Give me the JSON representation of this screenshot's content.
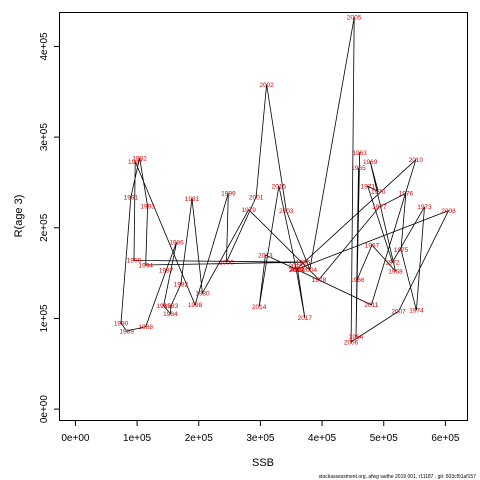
{
  "chart_data": {
    "type": "line",
    "title": "",
    "xlabel": "SSB",
    "ylabel": "R(age 3)",
    "xlim": [
      -25000,
      635000
    ],
    "ylim": [
      -12000,
      438000
    ],
    "x_ticks": [
      0,
      100000,
      200000,
      300000,
      400000,
      500000,
      600000
    ],
    "x_tick_labels": [
      "0e+00",
      "1e+05",
      "2e+05",
      "3e+05",
      "4e+05",
      "5e+05",
      "6e+05"
    ],
    "y_ticks": [
      0,
      100000,
      200000,
      300000,
      400000
    ],
    "y_tick_labels": [
      "0e+00",
      "1e+05",
      "2e+05",
      "3e+05",
      "4e+05"
    ],
    "grid": false,
    "line_color": "#000000",
    "label_color": "#e00000",
    "points": [
      {
        "year": "1963",
        "ssb": 461000,
        "r": 283000
      },
      {
        "year": "1964",
        "ssb": 455000,
        "r": 80000
      },
      {
        "year": "1965",
        "ssb": 459000,
        "r": 266000
      },
      {
        "year": "1966",
        "ssb": 457000,
        "r": 143000
      },
      {
        "year": "1967",
        "ssb": 481000,
        "r": 181000
      },
      {
        "year": "1968",
        "ssb": 519000,
        "r": 152000
      },
      {
        "year": "1969",
        "ssb": 478000,
        "r": 273000
      },
      {
        "year": "1970",
        "ssb": 491000,
        "r": 240000
      },
      {
        "year": "1971",
        "ssb": 474000,
        "r": 246000
      },
      {
        "year": "1972",
        "ssb": 514000,
        "r": 162000
      },
      {
        "year": "1973",
        "ssb": 566000,
        "r": 223000
      },
      {
        "year": "1974",
        "ssb": 553000,
        "r": 109000
      },
      {
        "year": "1975",
        "ssb": 528000,
        "r": 176000
      },
      {
        "year": "1976",
        "ssb": 536000,
        "r": 238000
      },
      {
        "year": "1977",
        "ssb": 493000,
        "r": 223000
      },
      {
        "year": "1978",
        "ssb": 395000,
        "r": 143000
      },
      {
        "year": "1979",
        "ssb": 281000,
        "r": 220000
      },
      {
        "year": "1980",
        "ssb": 206000,
        "r": 128000
      },
      {
        "year": "1981",
        "ssb": 189000,
        "r": 232000
      },
      {
        "year": "1982",
        "ssb": 171000,
        "r": 138000
      },
      {
        "year": "1983",
        "ssb": 155000,
        "r": 114000
      },
      {
        "year": "1984",
        "ssb": 154000,
        "r": 105000
      },
      {
        "year": "1985",
        "ssb": 143000,
        "r": 114000
      },
      {
        "year": "1986",
        "ssb": 164000,
        "r": 184000
      },
      {
        "year": "1987",
        "ssb": 147000,
        "r": 153000
      },
      {
        "year": "1988",
        "ssb": 114000,
        "r": 91000
      },
      {
        "year": "1989",
        "ssb": 83000,
        "r": 86000
      },
      {
        "year": "1990",
        "ssb": 74000,
        "r": 95000
      },
      {
        "year": "1991",
        "ssb": 90000,
        "r": 234000
      },
      {
        "year": "1992",
        "ssb": 104000,
        "r": 277000
      },
      {
        "year": "1993",
        "ssb": 117000,
        "r": 224000
      },
      {
        "year": "1994",
        "ssb": 114000,
        "r": 159000
      },
      {
        "year": "1995",
        "ssb": 369000,
        "r": 162000
      },
      {
        "year": "1996",
        "ssb": 95000,
        "r": 164000
      },
      {
        "year": "1997",
        "ssb": 97000,
        "r": 273000
      },
      {
        "year": "1998",
        "ssb": 194000,
        "r": 115000
      },
      {
        "year": "1999",
        "ssb": 248000,
        "r": 238000
      },
      {
        "year": "2000",
        "ssb": 245000,
        "r": 162000
      },
      {
        "year": "2001",
        "ssb": 293000,
        "r": 234000
      },
      {
        "year": "2002",
        "ssb": 310000,
        "r": 358000
      },
      {
        "year": "2003",
        "ssb": 342000,
        "r": 219000
      },
      {
        "year": "2004",
        "ssb": 380000,
        "r": 154000
      },
      {
        "year": "2005",
        "ssb": 452000,
        "r": 432000
      },
      {
        "year": "2006",
        "ssb": 447000,
        "r": 74000
      },
      {
        "year": "2007",
        "ssb": 524000,
        "r": 108000
      },
      {
        "year": "2008",
        "ssb": 605000,
        "r": 219000
      },
      {
        "year": "2009",
        "ssb": 358000,
        "r": 154000
      },
      {
        "year": "2010",
        "ssb": 552000,
        "r": 275000
      },
      {
        "year": "2011",
        "ssb": 480000,
        "r": 115000
      },
      {
        "year": "2012",
        "ssb": 359000,
        "r": 154000
      },
      {
        "year": "2013",
        "ssb": 308000,
        "r": 170000
      },
      {
        "year": "2014",
        "ssb": 298000,
        "r": 113000
      },
      {
        "year": "2015",
        "ssb": 330000,
        "r": 246000
      },
      {
        "year": "2016",
        "ssb": 357000,
        "r": 158000
      },
      {
        "year": "2017",
        "ssb": 372000,
        "r": 101000
      },
      {
        "year": "2018",
        "ssb": 360000,
        "r": 155000
      }
    ]
  },
  "footer": {
    "text": "stockassessment.org, afwg saithe 2019 001, r11187 , git: 503cf91af157"
  }
}
